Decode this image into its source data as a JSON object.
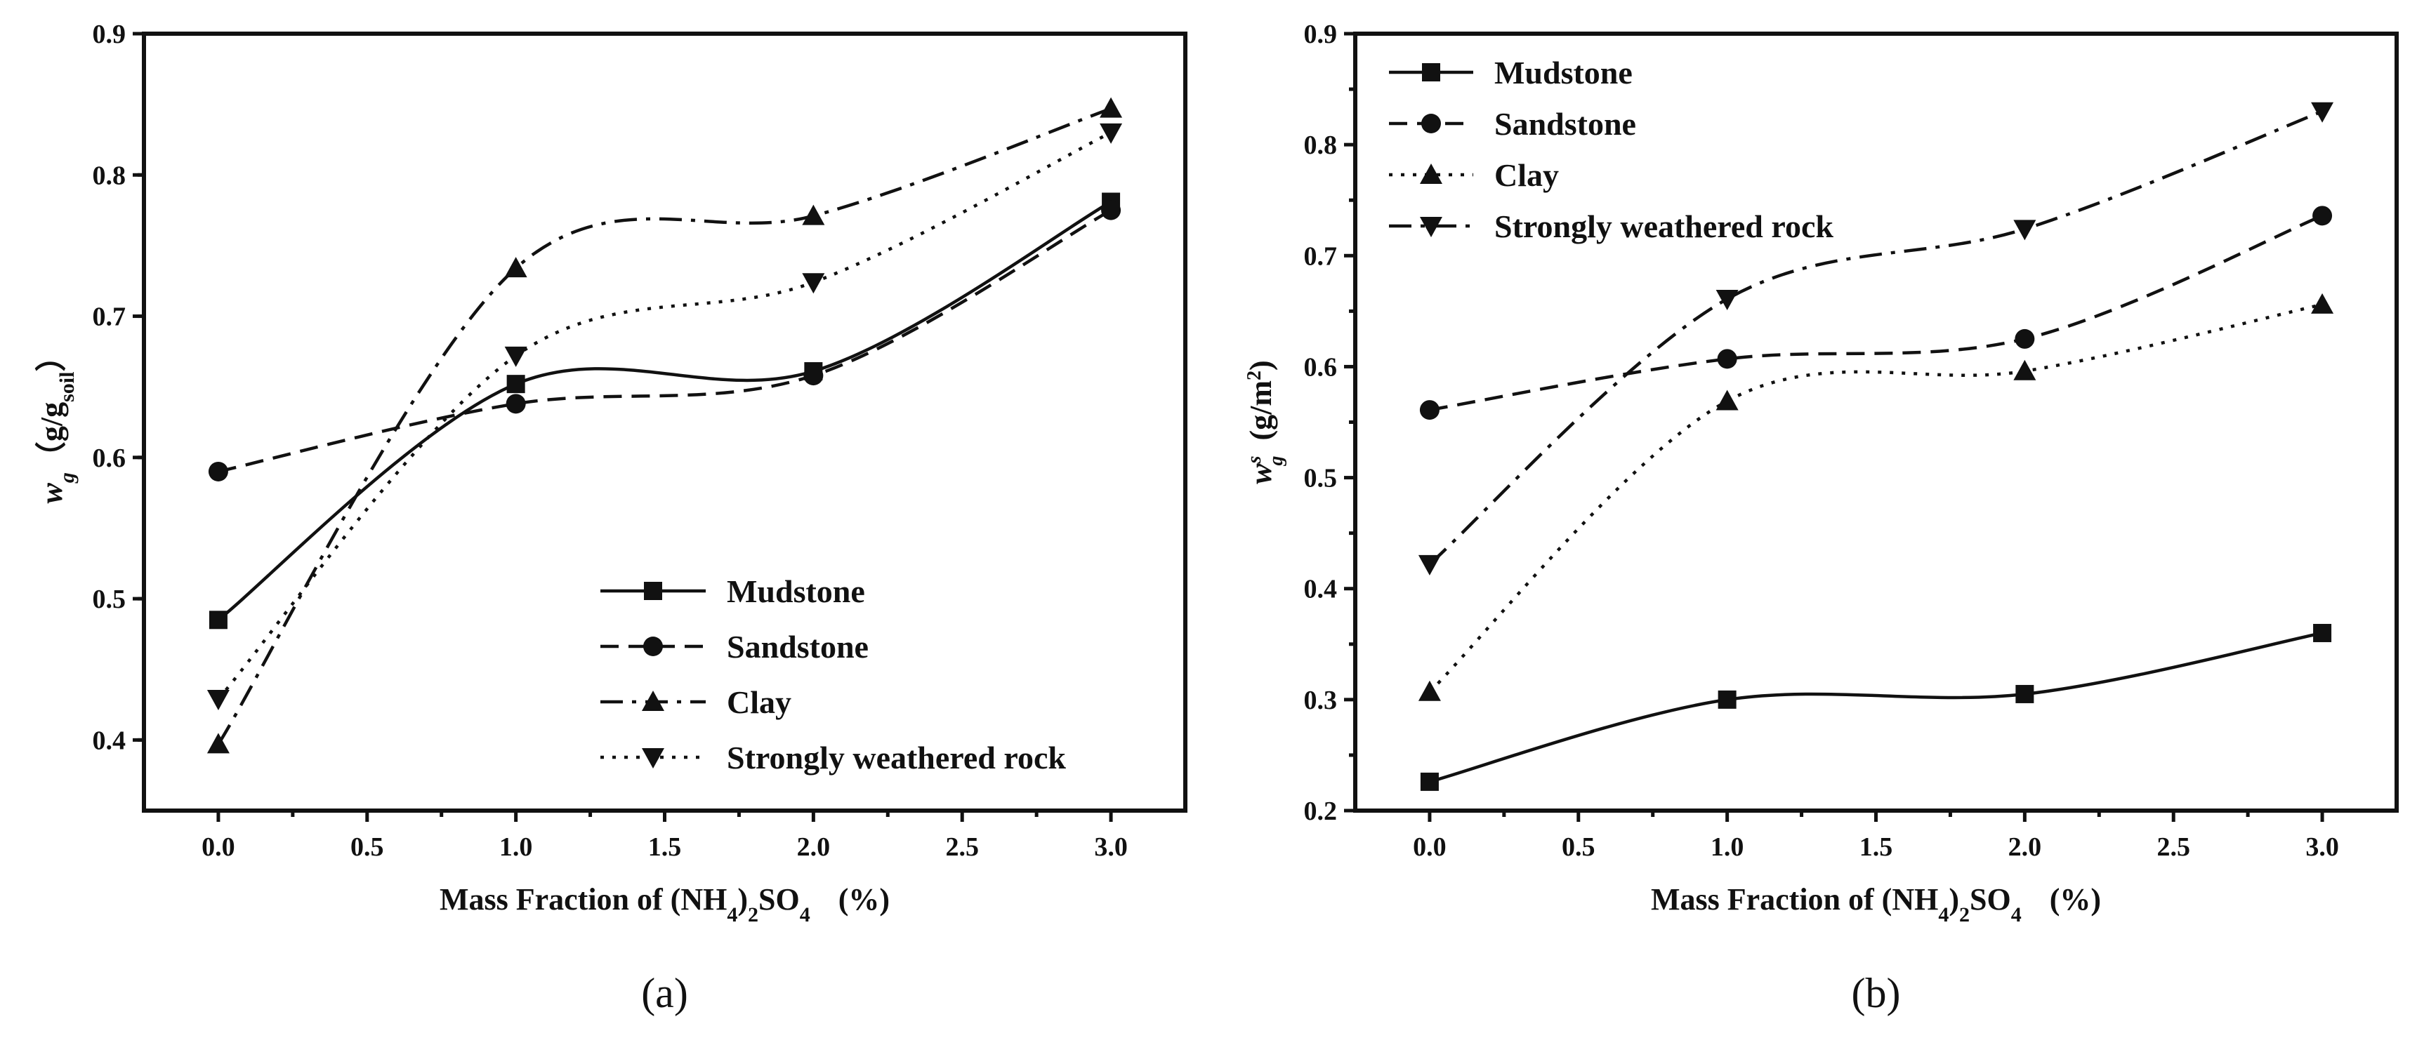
{
  "chart_data": [
    {
      "type": "line",
      "panel": "a",
      "caption": "(a)",
      "x": [
        0.0,
        1.0,
        2.0,
        3.0
      ],
      "xlim": [
        -0.25,
        3.25
      ],
      "ylim": [
        0.35,
        0.9
      ],
      "xticks": [
        0.0,
        0.5,
        1.0,
        1.5,
        2.0,
        2.5,
        3.0
      ],
      "xtick_labels": [
        "0.0",
        "0.5",
        "1.0",
        "1.5",
        "2.0",
        "2.5",
        "3.0"
      ],
      "yticks": [
        0.4,
        0.5,
        0.6,
        0.7,
        0.8,
        0.9
      ],
      "ytick_labels": [
        "0.4",
        "0.5",
        "0.6",
        "0.7",
        "0.8",
        "0.9"
      ],
      "xlabel": {
        "main": "Mass Fraction of (NH",
        "sub1": "4",
        "mid": ")",
        "sub2": "2",
        "tail": "SO",
        "sub3": "4",
        "unit": "(%)"
      },
      "ylabel": {
        "symbol": "w",
        "sub": "g",
        "open": "（g/g",
        "sub2": "soil",
        "close": "）"
      },
      "legend_position": "bottom-right",
      "series": [
        {
          "name": "Mudstone",
          "marker": "square",
          "dash": "solid",
          "values": [
            0.485,
            0.652,
            0.661,
            0.781
          ]
        },
        {
          "name": "Sandstone",
          "marker": "circle",
          "dash": "dashed",
          "values": [
            0.59,
            0.638,
            0.658,
            0.775
          ]
        },
        {
          "name": "Clay",
          "marker": "triangle-up",
          "dash": "dashdot",
          "values": [
            0.397,
            0.734,
            0.771,
            0.847
          ]
        },
        {
          "name": "Strongly weathered rock",
          "marker": "triangle-down",
          "dash": "dotted",
          "values": [
            0.429,
            0.672,
            0.724,
            0.83
          ]
        }
      ]
    },
    {
      "type": "line",
      "panel": "b",
      "caption": "(b)",
      "x": [
        0.0,
        1.0,
        2.0,
        3.0
      ],
      "xlim": [
        -0.25,
        3.25
      ],
      "ylim": [
        0.2,
        0.9
      ],
      "xticks": [
        0.0,
        0.5,
        1.0,
        1.5,
        2.0,
        2.5,
        3.0
      ],
      "xtick_labels": [
        "0.0",
        "0.5",
        "1.0",
        "1.5",
        "2.0",
        "2.5",
        "3.0"
      ],
      "yticks": [
        0.2,
        0.3,
        0.4,
        0.5,
        0.6,
        0.7,
        0.8,
        0.9
      ],
      "ytick_labels": [
        "0.2",
        "0.3",
        "0.4",
        "0.5",
        "0.6",
        "0.7",
        "0.8",
        "0.9"
      ],
      "xlabel": {
        "main": "Mass Fraction of (NH",
        "sub1": "4",
        "mid": ")",
        "sub2": "2",
        "tail": "SO",
        "sub3": "4",
        "unit": "(%)"
      },
      "ylabel": {
        "symbol": "w",
        "sup": "s",
        "sub": "g",
        "unit": "(g/m",
        "unit_sup": "2",
        "close": ")"
      },
      "legend_position": "top-left",
      "series": [
        {
          "name": "Mudstone",
          "marker": "square",
          "dash": "solid",
          "values": [
            0.226,
            0.3,
            0.305,
            0.36
          ]
        },
        {
          "name": "Sandstone",
          "marker": "circle",
          "dash": "dashed",
          "values": [
            0.561,
            0.607,
            0.625,
            0.736
          ]
        },
        {
          "name": "Clay",
          "marker": "triangle-up",
          "dash": "dotted",
          "values": [
            0.307,
            0.569,
            0.596,
            0.656
          ]
        },
        {
          "name": "Strongly weathered rock",
          "marker": "triangle-down",
          "dash": "dashdot",
          "values": [
            0.422,
            0.661,
            0.724,
            0.83
          ]
        }
      ]
    }
  ]
}
